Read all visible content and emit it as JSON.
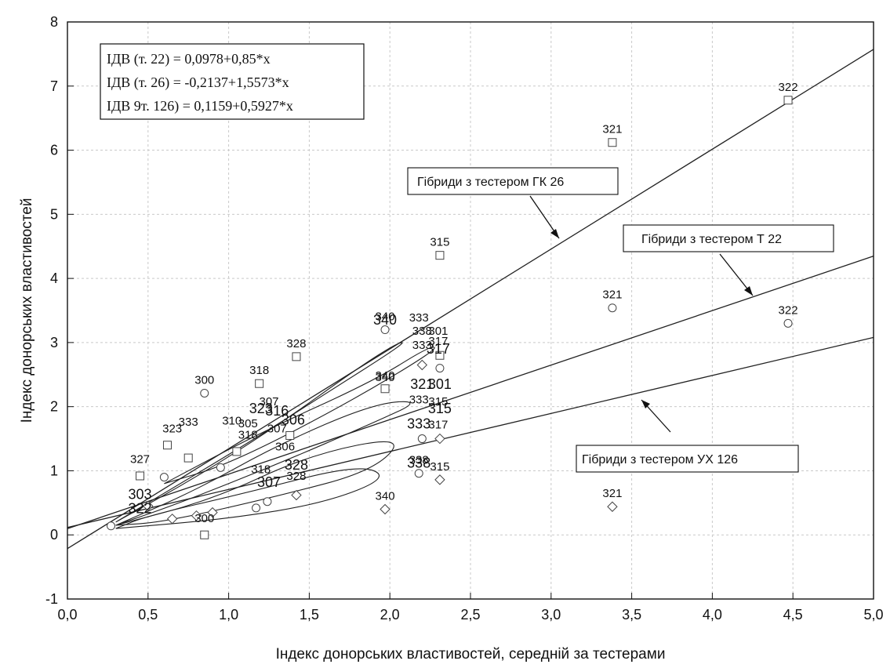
{
  "chart_data": {
    "type": "scatter",
    "xlabel": "Індекс донорських властивостей, середній за тестерами",
    "ylabel": "Індекс донорських властивостей",
    "xlim": [
      0.0,
      5.0
    ],
    "ylim": [
      -1,
      8
    ],
    "x_ticks": [
      "0,0",
      "0,5",
      "1,0",
      "1,5",
      "2,0",
      "2,5",
      "3,0",
      "3,5",
      "4,0",
      "4,5",
      "5,0"
    ],
    "y_ticks": [
      "-1",
      "0",
      "1",
      "2",
      "3",
      "4",
      "5",
      "6",
      "7",
      "8"
    ],
    "grid": true,
    "equations": [
      "ІДВ (т. 22) = 0,0978+0,85*х",
      "ІДВ (т. 26) = -0,2137+1,5573*х",
      "ІДВ 9т. 126) = 0,1159+0,5927*х"
    ],
    "regression_lines": [
      {
        "intercept": 0.0978,
        "slope": 0.85
      },
      {
        "intercept": -0.2137,
        "slope": 1.5573
      },
      {
        "intercept": 0.1159,
        "slope": 0.5927
      }
    ],
    "callouts": [
      "Гібриди з тестером ГК 26",
      "Гібриди з тестером Т 22",
      "Гібриди з тестером УХ 126"
    ],
    "series": [
      {
        "marker": "square",
        "points": [
          {
            "x": 4.47,
            "y": 6.78,
            "label": "322"
          },
          {
            "x": 3.38,
            "y": 6.12,
            "label": "321"
          },
          {
            "x": 2.31,
            "y": 4.36,
            "label": "315"
          },
          {
            "x": 1.42,
            "y": 2.78,
            "label": "328"
          },
          {
            "x": 1.19,
            "y": 2.36,
            "label": "318"
          },
          {
            "x": 1.97,
            "y": 2.28,
            "label": "340"
          },
          {
            "x": 2.31,
            "y": 2.8,
            "label": ""
          },
          {
            "x": 0.85,
            "y": 0.0,
            "label": ""
          },
          {
            "x": 1.38,
            "y": 1.55,
            "label": ""
          },
          {
            "x": 0.62,
            "y": 1.4,
            "label": ""
          },
          {
            "x": 0.45,
            "y": 0.92,
            "label": ""
          },
          {
            "x": 0.75,
            "y": 1.2,
            "label": ""
          },
          {
            "x": 1.05,
            "y": 1.3,
            "label": ""
          }
        ]
      },
      {
        "marker": "circle",
        "points": [
          {
            "x": 4.47,
            "y": 3.3,
            "label": "322"
          },
          {
            "x": 3.38,
            "y": 3.54,
            "label": "321"
          },
          {
            "x": 1.97,
            "y": 3.2,
            "label": "340"
          },
          {
            "x": 0.85,
            "y": 2.21,
            "label": "300"
          },
          {
            "x": 2.31,
            "y": 2.6,
            "label": ""
          },
          {
            "x": 2.18,
            "y": 0.96,
            "label": "338"
          },
          {
            "x": 2.2,
            "y": 1.5,
            "label": ""
          },
          {
            "x": 0.27,
            "y": 0.14,
            "label": ""
          },
          {
            "x": 0.6,
            "y": 0.9,
            "label": ""
          },
          {
            "x": 0.95,
            "y": 1.05,
            "label": ""
          },
          {
            "x": 1.17,
            "y": 0.42,
            "label": ""
          },
          {
            "x": 1.24,
            "y": 0.52,
            "label": ""
          }
        ]
      },
      {
        "marker": "diamond",
        "points": [
          {
            "x": 3.38,
            "y": 0.44,
            "label": "321"
          },
          {
            "x": 1.97,
            "y": 0.4,
            "label": "340"
          },
          {
            "x": 2.31,
            "y": 0.86,
            "label": "315"
          },
          {
            "x": 2.31,
            "y": 1.5,
            "label": ""
          },
          {
            "x": 1.42,
            "y": 0.62,
            "label": ""
          },
          {
            "x": 2.2,
            "y": 2.65,
            "label": ""
          },
          {
            "x": 0.5,
            "y": 0.45,
            "label": ""
          },
          {
            "x": 0.8,
            "y": 0.3,
            "label": ""
          },
          {
            "x": 0.65,
            "y": 0.25,
            "label": ""
          },
          {
            "x": 0.9,
            "y": 0.35,
            "label": ""
          }
        ]
      }
    ],
    "cluster_labels": [
      {
        "x": 2.18,
        "y": 3.33,
        "label": "333",
        "big": false
      },
      {
        "x": 2.2,
        "y": 3.12,
        "label": "338",
        "big": false
      },
      {
        "x": 2.3,
        "y": 3.12,
        "label": "301",
        "big": false
      },
      {
        "x": 2.3,
        "y": 2.96,
        "label": "317",
        "big": false
      },
      {
        "x": 2.2,
        "y": 2.9,
        "label": "333",
        "big": false
      },
      {
        "x": 2.3,
        "y": 2.83,
        "label": "317",
        "big": true
      },
      {
        "x": 2.2,
        "y": 2.28,
        "label": "321",
        "big": true
      },
      {
        "x": 2.31,
        "y": 2.28,
        "label": "301",
        "big": true
      },
      {
        "x": 2.18,
        "y": 2.05,
        "label": "333",
        "big": false
      },
      {
        "x": 2.3,
        "y": 2.02,
        "label": "315",
        "big": false
      },
      {
        "x": 2.31,
        "y": 1.9,
        "label": "315",
        "big": true
      },
      {
        "x": 2.18,
        "y": 1.66,
        "label": "333",
        "big": true
      },
      {
        "x": 2.3,
        "y": 1.66,
        "label": "317",
        "big": false
      },
      {
        "x": 1.97,
        "y": 2.4,
        "label": "340",
        "big": false
      },
      {
        "x": 2.18,
        "y": 1.05,
        "label": "338",
        "big": true
      },
      {
        "x": 1.97,
        "y": 3.28,
        "label": "340",
        "big": true
      },
      {
        "x": 1.25,
        "y": 2.02,
        "label": "307",
        "big": false
      },
      {
        "x": 1.2,
        "y": 1.9,
        "label": "323",
        "big": true
      },
      {
        "x": 1.3,
        "y": 1.86,
        "label": "316",
        "big": true
      },
      {
        "x": 1.4,
        "y": 1.72,
        "label": "306",
        "big": true
      },
      {
        "x": 1.3,
        "y": 1.6,
        "label": "307",
        "big": false
      },
      {
        "x": 1.42,
        "y": 1.02,
        "label": "328",
        "big": true
      },
      {
        "x": 1.42,
        "y": 0.86,
        "label": "328",
        "big": false
      },
      {
        "x": 1.35,
        "y": 1.32,
        "label": "306",
        "big": false
      },
      {
        "x": 0.65,
        "y": 1.6,
        "label": "323",
        "big": false
      },
      {
        "x": 0.75,
        "y": 1.7,
        "label": "333",
        "big": false
      },
      {
        "x": 1.02,
        "y": 1.72,
        "label": "310",
        "big": false
      },
      {
        "x": 1.12,
        "y": 1.68,
        "label": "305",
        "big": false
      },
      {
        "x": 1.12,
        "y": 1.5,
        "label": "318",
        "big": false
      },
      {
        "x": 0.45,
        "y": 1.12,
        "label": "327",
        "big": false
      },
      {
        "x": 0.45,
        "y": 0.56,
        "label": "303",
        "big": true
      },
      {
        "x": 0.45,
        "y": 0.34,
        "label": "322",
        "big": true
      },
      {
        "x": 0.85,
        "y": 0.2,
        "label": "300",
        "big": false
      },
      {
        "x": 1.25,
        "y": 0.75,
        "label": "307",
        "big": true
      },
      {
        "x": 1.2,
        "y": 0.96,
        "label": "318",
        "big": false
      }
    ],
    "ellipses": [
      {
        "points": [
          [
            0.3,
            0.2
          ],
          [
            0.8,
            0.9
          ],
          [
            1.3,
            1.7
          ],
          [
            1.8,
            2.6
          ],
          [
            2.05,
            3.0
          ],
          [
            2.1,
            3.0
          ],
          [
            1.6,
            2.2
          ],
          [
            1.1,
            1.4
          ],
          [
            0.5,
            0.5
          ],
          [
            0.3,
            0.2
          ]
        ]
      },
      {
        "points": [
          [
            0.3,
            0.15
          ],
          [
            0.8,
            0.7
          ],
          [
            1.3,
            1.4
          ],
          [
            1.9,
            2.05
          ],
          [
            2.2,
            2.1
          ],
          [
            1.9,
            1.75
          ],
          [
            1.3,
            1.1
          ],
          [
            0.7,
            0.5
          ],
          [
            0.3,
            0.15
          ]
        ]
      },
      {
        "points": [
          [
            0.3,
            0.15
          ],
          [
            0.9,
            0.55
          ],
          [
            1.5,
            1.25
          ],
          [
            2.1,
            1.55
          ],
          [
            1.9,
            1.0
          ],
          [
            1.3,
            0.6
          ],
          [
            0.6,
            0.2
          ],
          [
            0.3,
            0.15
          ]
        ]
      },
      {
        "points": [
          [
            0.3,
            0.1
          ],
          [
            1.0,
            0.25
          ],
          [
            1.6,
            0.5
          ],
          [
            2.0,
            0.9
          ],
          [
            1.8,
            1.1
          ],
          [
            1.1,
            0.65
          ],
          [
            0.5,
            0.3
          ],
          [
            0.3,
            0.1
          ]
        ]
      },
      {
        "points": [
          [
            0.6,
            0.8
          ],
          [
            1.2,
            1.6
          ],
          [
            1.9,
            2.4
          ],
          [
            2.25,
            2.95
          ],
          [
            2.3,
            2.9
          ],
          [
            1.7,
            2.0
          ],
          [
            1.0,
            1.1
          ],
          [
            0.6,
            0.8
          ]
        ]
      }
    ]
  }
}
